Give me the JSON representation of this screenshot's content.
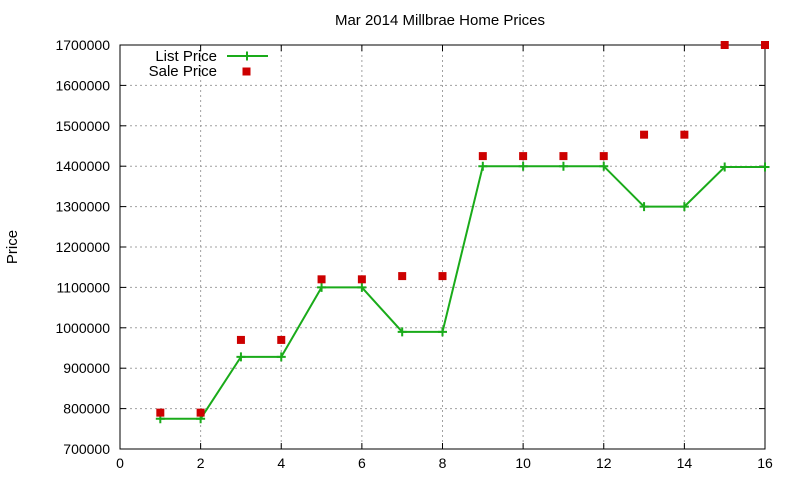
{
  "chart_data": {
    "type": "line",
    "title": "Mar 2014 Millbrae Home Prices",
    "xlabel": "",
    "ylabel": "Price",
    "xlim": [
      0,
      16
    ],
    "ylim": [
      700000,
      1700000
    ],
    "x_ticks": [
      0,
      2,
      4,
      6,
      8,
      10,
      12,
      14,
      16
    ],
    "y_ticks": [
      700000,
      800000,
      900000,
      1000000,
      1100000,
      1200000,
      1300000,
      1400000,
      1500000,
      1600000,
      1700000
    ],
    "grid": true,
    "legend_position": "top-left",
    "series": [
      {
        "name": "List Price",
        "style": "line+cross",
        "color": "#1aab1a",
        "x": [
          1,
          2,
          3,
          4,
          5,
          6,
          7,
          8,
          9,
          10,
          11,
          12,
          13,
          14,
          15,
          16
        ],
        "values": [
          775000,
          775000,
          928000,
          928000,
          1100000,
          1100000,
          990000,
          990000,
          1400000,
          1400000,
          1400000,
          1400000,
          1300000,
          1300000,
          1398000,
          1398000
        ]
      },
      {
        "name": "Sale Price",
        "style": "square",
        "color": "#cc0000",
        "x": [
          1,
          2,
          3,
          4,
          5,
          6,
          7,
          8,
          9,
          10,
          11,
          12,
          13,
          14,
          15,
          16
        ],
        "values": [
          790000,
          790000,
          970000,
          970000,
          1120000,
          1120000,
          1128000,
          1128000,
          1425000,
          1425000,
          1425000,
          1425000,
          1478000,
          1478000,
          1700000,
          1700000
        ]
      }
    ]
  }
}
